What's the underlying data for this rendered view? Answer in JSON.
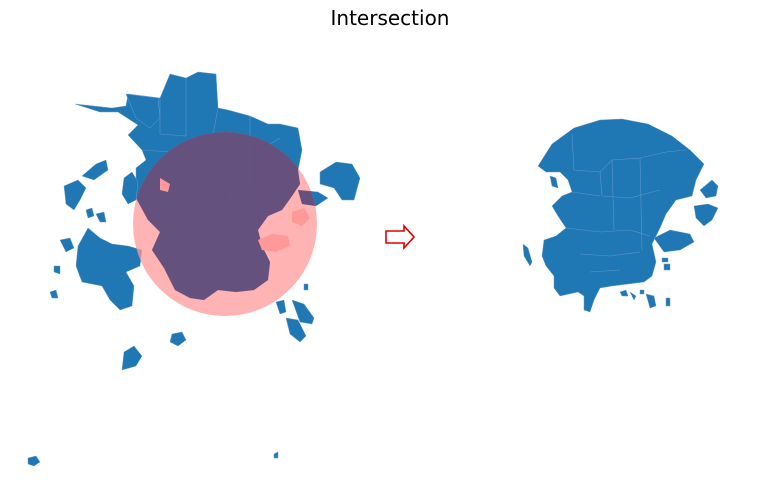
{
  "figure": {
    "title": "Intersection",
    "colors": {
      "shape_fill": "#1f77b4",
      "shape_stroke": "#6a9ccc",
      "circle_fill": "#ff9999",
      "overlap_fill": "#5a4a7a",
      "arrow": "#dd0000",
      "background": "#ffffff"
    },
    "panels": [
      {
        "name": "input-geometry-with-circle-overlay"
      },
      {
        "name": "intersection-result"
      }
    ],
    "arrow_icon": "right-arrow-icon"
  }
}
